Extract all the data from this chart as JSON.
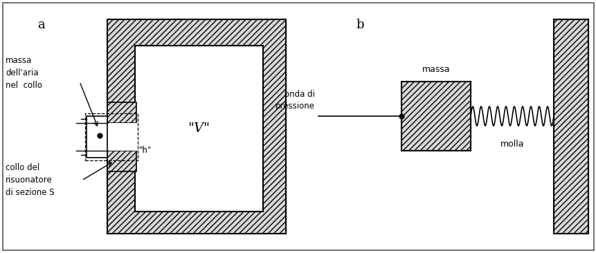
{
  "bg_color": "#ffffff",
  "outer_border": "#333333",
  "label_a": "a",
  "label_b": "b",
  "text_massa_aria": "massa\ndell'aria\nnel  collo",
  "text_h": "\"h\"",
  "text_collo": "collo del\nrisuonatore\ndi sezione S",
  "text_V": "\"V\"",
  "text_massa": "massa",
  "text_onda": "onda di\npressione",
  "text_molla": "molla"
}
